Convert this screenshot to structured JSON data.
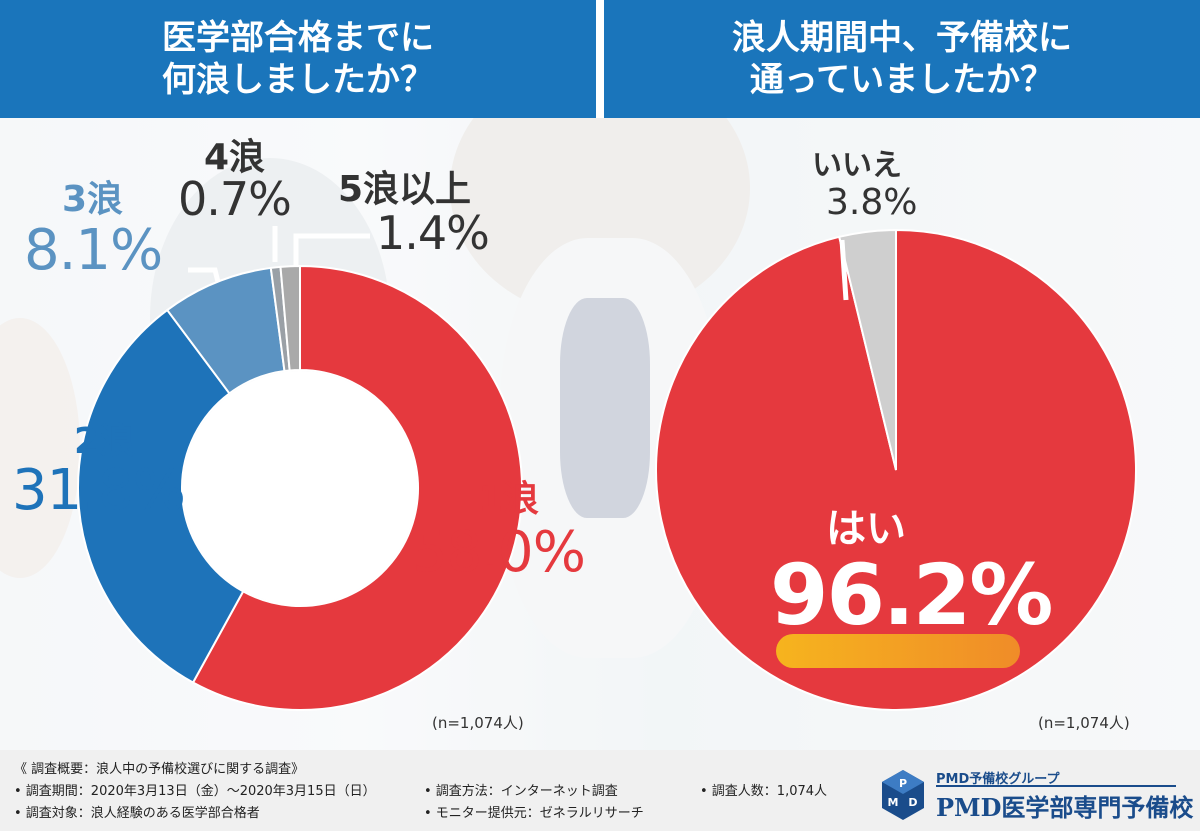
{
  "titles": {
    "left": [
      "医学部合格までに",
      "何浪しましたか？"
    ],
    "right": [
      "浪人期間中、予備校に",
      "通っていましたか？"
    ]
  },
  "chart_data": [
    {
      "type": "pie",
      "donut": true,
      "categories": [
        "1浪",
        "2浪",
        "3浪",
        "4浪",
        "5浪以上"
      ],
      "values": [
        58.0,
        31.8,
        8.1,
        0.7,
        1.4
      ],
      "value_labels": [
        "58.0%",
        "31.8%",
        "8.1%",
        "0.7%",
        "1.4%"
      ],
      "colors": [
        "#e5393e",
        "#1e73b9",
        "#5b93c2",
        "#9aa0a6",
        "#a9a9a9"
      ],
      "note": "(n=1,074人)"
    },
    {
      "type": "pie",
      "donut": false,
      "categories": [
        "はい",
        "いいえ"
      ],
      "values": [
        96.2,
        3.8
      ],
      "value_labels": [
        "96.2%",
        "3.8%"
      ],
      "colors": [
        "#e5393e",
        "#cfcfcf"
      ],
      "note": "(n=1,074人)"
    }
  ],
  "footer": {
    "heading": "《 調査概要：浪人中の予備校選びに関する調査》",
    "period": "• 調査期間：2020年3月13日（金）～2020年3月15日（日）",
    "target": "• 調査対象：浪人経験のある医学部合格者",
    "method": "• 調査方法：インターネット調査",
    "provider": "• モニター提供元：ゼネラルリサーチ",
    "count": "• 調査人数：1,074人"
  },
  "brand": {
    "group": "PMD予備校グループ",
    "name": "PMD医学部専門予備校",
    "logo_letters": [
      "P",
      "M",
      "D"
    ]
  }
}
